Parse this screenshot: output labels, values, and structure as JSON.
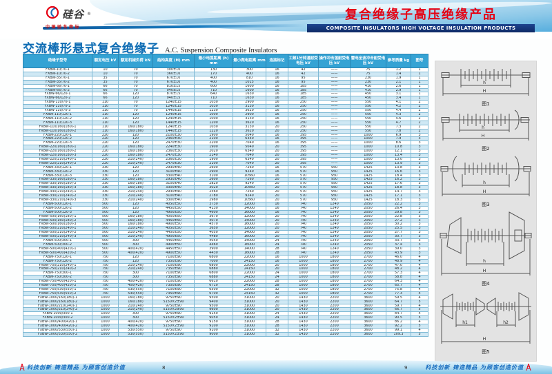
{
  "header": {
    "logo": {
      "brand": "硅谷",
      "registered": "®",
      "tagline": "中国驰名商标"
    },
    "right_title_cn": "复合绝缘子高压绝缘产品",
    "right_title_en": "COMPOSITE INSULATORS HIGH VOLTAGE INSULATION PRODUCTS"
  },
  "page_left": {
    "section_title_cn": "交流棒形悬式复合绝缘子",
    "section_title_en": "A.C. Suspension Composite Insulators",
    "page_number": "8",
    "footer_slogan": "科技创新 铸造精品 为顾客创造价值"
  },
  "page_right": {
    "page_number": "9",
    "footer_slogan": "科技创新 铸造精品 为顾客创造价值"
  },
  "table": {
    "columns": [
      "绝缘子型号",
      "额定电压 kV",
      "额定机械负荷 kN",
      "结构高度 (H) mm",
      "最小电弧距离 (h) mm",
      "最小爬电距离 mm",
      "连接标记",
      "工频1分钟湿耐受电压 kV",
      "操作冲击湿耐受电压 kV",
      "雷电全波冲击耐受电压 kV",
      "参考质量 kg",
      "图号"
    ],
    "rows": [
      [
        "FXBW-10/70-1",
        "10",
        "70",
        "300±10",
        "130",
        "300",
        "16",
        "42",
        "——",
        "75",
        "1.2",
        "1"
      ],
      [
        "FXBW-10/70-2",
        "10",
        "70",
        "360±10",
        "170",
        "400",
        "16",
        "42",
        "——",
        "75",
        "1.4",
        "1"
      ],
      [
        "FXBW-35/70-1",
        "35",
        "70",
        "670±10",
        "400",
        "810",
        "16",
        "95",
        "——",
        "230",
        "1.9",
        "1"
      ],
      [
        "FXBW-35/70-2",
        "35",
        "70",
        "670±10",
        "400",
        "1015",
        "16",
        "95",
        "——",
        "230",
        "2.1",
        "1"
      ],
      [
        "FXBW-66/70-1",
        "66",
        "70",
        "810±15",
        "600",
        "1600",
        "16",
        "185",
        "——",
        "410",
        "2.6",
        "1"
      ],
      [
        "FXBW-66/70-2",
        "66",
        "70",
        "940±15",
        "710",
        "1600",
        "16",
        "185",
        "——",
        "410",
        "2.9",
        "1"
      ],
      [
        "FXBW-66/120-1",
        "66",
        "120",
        "870±15",
        "640",
        "1630",
        "16",
        "185",
        "——",
        "450",
        "3.1",
        "1"
      ],
      [
        "FXBW-66/120-2",
        "66",
        "120",
        "940±15",
        "710",
        "1630",
        "16",
        "185",
        "——",
        "450",
        "3.4",
        "1"
      ],
      [
        "FXBW-110/70-1",
        "110",
        "70",
        "1240±15",
        "1030",
        "2900",
        "16",
        "250",
        "——",
        "550",
        "4.1",
        "2"
      ],
      [
        "FXBW-110/70-2",
        "110",
        "70",
        "1240±15",
        "1030",
        "3130",
        "16",
        "250",
        "——",
        "550",
        "4.2",
        "2"
      ],
      [
        "FXBW-110/70-3",
        "110",
        "70",
        "1440±15",
        "1230",
        "3620",
        "16",
        "250",
        "——",
        "550",
        "4.4",
        "2"
      ],
      [
        "FXBW-110/120-1",
        "110",
        "120",
        "1240±15",
        "1000",
        "2900",
        "16",
        "250",
        "——",
        "550",
        "4.3",
        "2"
      ],
      [
        "FXBW-110/120-2",
        "110",
        "120",
        "1240±15",
        "1000",
        "3130",
        "16",
        "250",
        "——",
        "550",
        "4.6",
        "2"
      ],
      [
        "FXBW-110/120-3",
        "110",
        "120",
        "1440±15",
        "1200",
        "3620",
        "16",
        "250",
        "——",
        "550",
        "4.7",
        "2"
      ],
      [
        "FXBW-110/160(180)-1",
        "110",
        "160(180)",
        "1240±15",
        "1030",
        "3130",
        "20",
        "250",
        "——",
        "550",
        "7.3",
        "2"
      ],
      [
        "FXBW-110/160(180)-2",
        "110",
        "160(180)",
        "1440±15",
        "1220",
        "3620",
        "20",
        "250",
        "——",
        "550",
        "7.8",
        "2"
      ],
      [
        "FXBW-220/120-1",
        "220",
        "120",
        "2100±30",
        "1900",
        "5040",
        "16",
        "395",
        "——",
        "1000",
        "6.9",
        "3"
      ],
      [
        "FXBW-220/120-2",
        "220",
        "120",
        "2360±30",
        "2100",
        "6340",
        "16",
        "395",
        "——",
        "1000",
        "7.9",
        "3"
      ],
      [
        "FXBW-220/120-3",
        "220",
        "120",
        "2470±30",
        "2200",
        "7040",
        "16",
        "395",
        "——",
        "1000",
        "8.6",
        "3"
      ],
      [
        "FXBW-220/160(180)-1",
        "220",
        "160(180)",
        "2240±30",
        "1900",
        "5040",
        "20",
        "395",
        "——",
        "1000",
        "10.8",
        "3"
      ],
      [
        "FXBW-220/160(180)-2",
        "220",
        "160(180)",
        "2360±30",
        "2020",
        "6340",
        "20",
        "395",
        "——",
        "1000",
        "12.1",
        "3"
      ],
      [
        "FXBW-220/160(180)-3",
        "220",
        "160(180)",
        "2470±30",
        "2140",
        "7040",
        "20",
        "395",
        "——",
        "1000",
        "13.4",
        "3"
      ],
      [
        "FXBW-220/210(240)-1",
        "220",
        "210(240)",
        "2360±30",
        "1900",
        "6340",
        "20",
        "395",
        "——",
        "1000",
        "13.0",
        "3"
      ],
      [
        "FXBW-220/210(240)-2",
        "220",
        "210(240)",
        "2470±30",
        "2100",
        "7040",
        "20",
        "395",
        "——",
        "1000",
        "13.9",
        "3"
      ],
      [
        "FXBW-330/120-1",
        "330",
        "120",
        "2930±40",
        "2600",
        "7260",
        "16",
        "570",
        "950",
        "1425",
        "13.8",
        "3"
      ],
      [
        "FXBW-330/120-2",
        "330",
        "120",
        "3100±40",
        "2900",
        "9240",
        "16",
        "570",
        "950",
        "1425",
        "16.6",
        "3"
      ],
      [
        "FXBW-330/120-3",
        "330",
        "120",
        "3300±40",
        "3100",
        "10560",
        "16",
        "570",
        "950",
        "1425",
        "18.4",
        "3"
      ],
      [
        "FXBW-330/160(180)-1",
        "330",
        "160(180)",
        "2930±40",
        "2600",
        "7260",
        "20",
        "570",
        "950",
        "1425",
        "16.2",
        "3"
      ],
      [
        "FXBW-330/160(180)-2",
        "330",
        "160(180)",
        "3100±40",
        "2820",
        "9240",
        "20",
        "570",
        "950",
        "1425",
        "17.6",
        "3"
      ],
      [
        "FXBW-330/160(180)-3",
        "330",
        "160(180)",
        "3300±40",
        "3020",
        "10560",
        "20",
        "570",
        "950",
        "1425",
        "18.8",
        "3"
      ],
      [
        "FXBW-330/210(240)-1",
        "330",
        "210(240)",
        "2930±40",
        "2560",
        "7260",
        "20",
        "570",
        "950",
        "1425",
        "14.7",
        "3"
      ],
      [
        "FXBW-330/210(240)-2",
        "330",
        "210(240)",
        "3100±40",
        "2780",
        "9240",
        "20",
        "570",
        "950",
        "1425",
        "17.1",
        "3"
      ],
      [
        "FXBW-330/210(240)-3",
        "330",
        "210(240)",
        "3300±40",
        "2980",
        "10560",
        "20",
        "570",
        "950",
        "1425",
        "18.3",
        "3"
      ],
      [
        "FXBW-500/120-1",
        "500",
        "120",
        "4050±50",
        "3730",
        "12000",
        "16",
        "740",
        "1240",
        "2050",
        "22.2",
        "3"
      ],
      [
        "FXBW-500/120-2",
        "500",
        "120",
        "4450±50",
        "4130",
        "14000",
        "16",
        "740",
        "1240",
        "2050",
        "26.4",
        "3"
      ],
      [
        "FXBW-500/120-3",
        "500",
        "120",
        "4900±50",
        "4600",
        "16000",
        "16",
        "740",
        "1240",
        "2050",
        "29.8",
        "3"
      ],
      [
        "FXBW-500/160(180)-1",
        "500",
        "160(180)",
        "4050±50",
        "3670",
        "12000",
        "20",
        "740",
        "1240",
        "2050",
        "22.8",
        "3"
      ],
      [
        "FXBW-500/160(180)-2",
        "500",
        "160(180)",
        "4450±50",
        "4070",
        "14000",
        "20",
        "740",
        "1240",
        "2050",
        "27.2",
        "3"
      ],
      [
        "FXBW-500/160(180)-3",
        "500",
        "160(180)",
        "4900±50",
        "4570",
        "16000",
        "20",
        "740",
        "1240",
        "2050",
        "30.2",
        "3"
      ],
      [
        "FXBW-500/210(240)-1",
        "500",
        "210(240)",
        "4050±50",
        "3650",
        "12000",
        "20",
        "740",
        "1240",
        "2050",
        "25.5",
        "3"
      ],
      [
        "FXBW-500/210(240)-2",
        "500",
        "210(240)",
        "4450±50",
        "4050",
        "14000",
        "20",
        "740",
        "1240",
        "2050",
        "27.7",
        "3"
      ],
      [
        "FXBW-500/210(240)-3",
        "500",
        "210(240)",
        "4900±50",
        "4480",
        "16000",
        "20",
        "740",
        "1240",
        "2050",
        "30.7",
        "3"
      ],
      [
        "FXBW-500/300-1",
        "500",
        "300",
        "4450±50",
        "4050",
        "14000",
        "24",
        "740",
        "1240",
        "2050",
        "33.7",
        "3"
      ],
      [
        "FXBW-500/300-2",
        "500",
        "300",
        "4900±50",
        "4460",
        "16000",
        "24",
        "740",
        "1240",
        "2050",
        "37.4",
        "3"
      ],
      [
        "FXBW-500/400(420)-1",
        "500",
        "400(420)",
        "4450±50",
        "3900",
        "14000",
        "28",
        "740",
        "1240",
        "2050",
        "39.0",
        "3"
      ],
      [
        "FXBW-500/400(420)-2",
        "500",
        "400(420)",
        "4900±50",
        "4430",
        "16000",
        "28",
        "740",
        "1240",
        "2050",
        "43.9",
        "3"
      ],
      [
        "FXBW-750/120-1",
        "750",
        "120",
        "7100±90",
        "6800",
        "22000",
        "16",
        "1000",
        "1800",
        "2700",
        "46.0",
        "4"
      ],
      [
        "FXBW-750/120-2",
        "750",
        "120",
        "7350±90",
        "7000",
        "24150",
        "16",
        "1000",
        "1800",
        "2700",
        "48.9",
        "4"
      ],
      [
        "FXBW-750/210(240)-1",
        "750",
        "210(240)",
        "7100±90",
        "6800",
        "22000",
        "20",
        "1000",
        "1800",
        "2700",
        "47.0",
        "4"
      ],
      [
        "FXBW-750/210(240)-2",
        "750",
        "210(240)",
        "7350±90",
        "6880",
        "24150",
        "20",
        "1000",
        "1800",
        "2700",
        "48.2",
        "4"
      ],
      [
        "FXBW-750/300-1",
        "750",
        "300",
        "7100±90",
        "6800",
        "22000",
        "24",
        "1000",
        "1800",
        "2700",
        "57.3",
        "4"
      ],
      [
        "FXBW-750/300-2",
        "750",
        "300",
        "7350±90",
        "6880",
        "24150",
        "24",
        "1000",
        "1800",
        "2700",
        "58.8",
        "4"
      ],
      [
        "FXBW-750/400(420)-1",
        "750",
        "400(420)",
        "7100±90",
        "6610",
        "22000",
        "28",
        "1000",
        "1800",
        "2700",
        "64.3",
        "4"
      ],
      [
        "FXBW-750/400(420)-2",
        "750",
        "400(420)",
        "7350±90",
        "6710",
        "24150",
        "28",
        "1000",
        "1800",
        "2700",
        "65.7",
        "4"
      ],
      [
        "FXBW-750/530(550)-1",
        "750",
        "530(550)",
        "7100±90",
        "6500",
        "22000",
        "32",
        "1000",
        "1800",
        "2700",
        "75.8",
        "4"
      ],
      [
        "FXBW-750/530(550)-2",
        "750",
        "530(550)",
        "7350±90",
        "6700",
        "24150",
        "32",
        "1000",
        "1800",
        "2700",
        "77.3",
        "4"
      ],
      [
        "FXBW-1000/160(180)-1",
        "1000",
        "160(180)",
        "9750±90",
        "9500",
        "31000",
        "20",
        "1430",
        "2200",
        "3600",
        "59.5",
        "4"
      ],
      [
        "FXBW-1000/160(180)-2",
        "1000",
        "160(180)",
        "5150×2±90",
        "9400",
        "31000",
        "20",
        "1430",
        "2200",
        "3600",
        "64.7",
        "5"
      ],
      [
        "FXBW-1000/210(240)-1",
        "1000",
        "210(240)",
        "9750±90",
        "9500",
        "31000",
        "20",
        "1430",
        "2200",
        "3600",
        "59.7",
        "4"
      ],
      [
        "FXBW-1000/210(240)-2",
        "1000",
        "210(240)",
        "5150×2±90",
        "9600",
        "31000",
        "20",
        "1430",
        "2200",
        "3600",
        "66.7",
        "5"
      ],
      [
        "FXBW-1000/300-1",
        "1000",
        "300",
        "9750±90",
        "9150",
        "31000",
        "24",
        "1430",
        "2200",
        "3600",
        "84.7",
        "4"
      ],
      [
        "FXBW-1000/300-2",
        "1000",
        "300",
        "5150×2±90",
        "9050",
        "31000",
        "24",
        "1430",
        "2200",
        "3600",
        "90.5",
        "5"
      ],
      [
        "FXBW-1000/400(420)-1",
        "1000",
        "400(420)",
        "9750±90",
        "9150",
        "31000",
        "28",
        "1430",
        "2200",
        "3600",
        "86.2",
        "4"
      ],
      [
        "FXBW-1000/400(420)-2",
        "1000",
        "400(420)",
        "5150×2±90",
        "9100",
        "31000",
        "28",
        "1430",
        "2200",
        "3600",
        "92.2",
        "5"
      ],
      [
        "FXBW-1000/530(550)-1",
        "1000",
        "530(550)",
        "9750±90",
        "9100",
        "31000",
        "32",
        "1430",
        "2200",
        "3600",
        "99.1",
        "4"
      ],
      [
        "FXBW-1000/530(550)-2",
        "1000",
        "530(550)",
        "5150×2±90",
        "9000",
        "31000",
        "32",
        "1430",
        "2200",
        "3600",
        "109.3",
        "5"
      ]
    ]
  },
  "figures": [
    {
      "caption": "图1",
      "dims": [
        "h",
        "H"
      ]
    },
    {
      "caption": "图2",
      "dims": [
        "h",
        "H"
      ]
    },
    {
      "caption": "图3",
      "dims": [
        "h",
        "H"
      ]
    },
    {
      "caption": "图4",
      "dims": [
        "h",
        "H"
      ]
    },
    {
      "caption": "图5",
      "dims": [
        "h1",
        "h2",
        "H"
      ]
    }
  ],
  "colors": {
    "accent_red": "#e60012",
    "table_header_blue": "#35a3d4",
    "row_alt_blue": "#cfe8f4",
    "navy_bar": "#16337e",
    "title_blue": "#0f6cb3",
    "slogan_blue": "#1b6fc0"
  }
}
